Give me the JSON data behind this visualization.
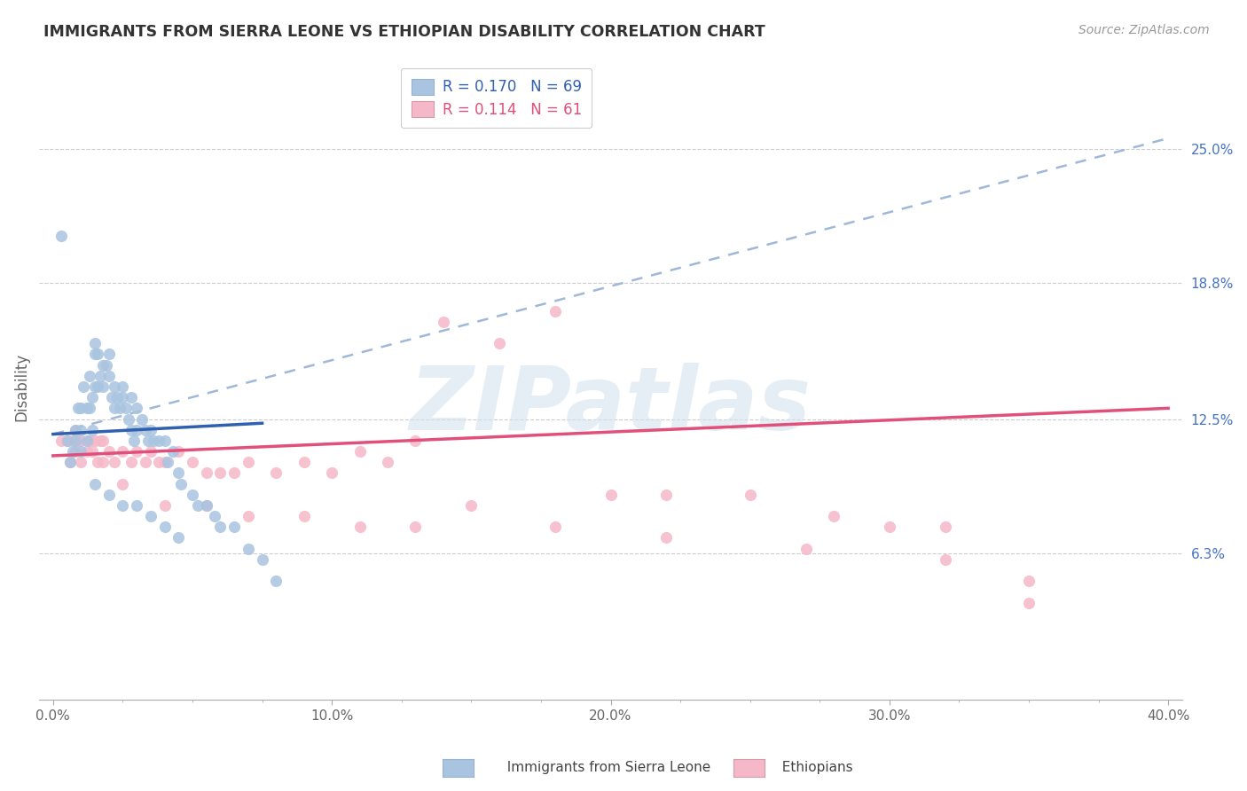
{
  "title": "IMMIGRANTS FROM SIERRA LEONE VS ETHIOPIAN DISABILITY CORRELATION CHART",
  "source": "Source: ZipAtlas.com",
  "ylabel": "Disability",
  "xlabel": "",
  "xlim": [
    -0.005,
    0.405
  ],
  "ylim": [
    -0.005,
    0.285
  ],
  "yticks": [
    0.063,
    0.125,
    0.188,
    0.25
  ],
  "ytick_labels": [
    "6.3%",
    "12.5%",
    "18.8%",
    "25.0%"
  ],
  "xticks": [
    0.0,
    0.1,
    0.2,
    0.3,
    0.4
  ],
  "xtick_labels": [
    "0.0%",
    "10.0%",
    "20.0%",
    "30.0%",
    "40.0%"
  ],
  "r_blue": 0.17,
  "n_blue": 69,
  "r_pink": 0.114,
  "n_pink": 61,
  "blue_color": "#a8c4e0",
  "pink_color": "#f5b8c8",
  "blue_line_color": "#3060b0",
  "pink_line_color": "#e0507a",
  "dashed_line_color": "#a0b8d8",
  "watermark_color": "#d5e3ef",
  "watermark": "ZIPatlas",
  "sierra_leone_x": [
    0.003,
    0.005,
    0.006,
    0.007,
    0.008,
    0.008,
    0.009,
    0.01,
    0.01,
    0.01,
    0.011,
    0.012,
    0.012,
    0.013,
    0.013,
    0.014,
    0.014,
    0.015,
    0.015,
    0.015,
    0.016,
    0.016,
    0.017,
    0.018,
    0.018,
    0.019,
    0.02,
    0.02,
    0.021,
    0.022,
    0.022,
    0.023,
    0.024,
    0.025,
    0.025,
    0.026,
    0.027,
    0.028,
    0.028,
    0.029,
    0.03,
    0.03,
    0.032,
    0.033,
    0.034,
    0.035,
    0.036,
    0.038,
    0.04,
    0.041,
    0.043,
    0.045,
    0.046,
    0.05,
    0.052,
    0.055,
    0.058,
    0.06,
    0.065,
    0.07,
    0.075,
    0.08,
    0.015,
    0.02,
    0.025,
    0.03,
    0.035,
    0.04,
    0.045
  ],
  "sierra_leone_y": [
    0.21,
    0.115,
    0.105,
    0.11,
    0.12,
    0.115,
    0.13,
    0.13,
    0.12,
    0.11,
    0.14,
    0.13,
    0.115,
    0.145,
    0.13,
    0.135,
    0.12,
    0.16,
    0.155,
    0.14,
    0.155,
    0.14,
    0.145,
    0.15,
    0.14,
    0.15,
    0.155,
    0.145,
    0.135,
    0.14,
    0.13,
    0.135,
    0.13,
    0.14,
    0.135,
    0.13,
    0.125,
    0.135,
    0.12,
    0.115,
    0.13,
    0.12,
    0.125,
    0.12,
    0.115,
    0.12,
    0.115,
    0.115,
    0.115,
    0.105,
    0.11,
    0.1,
    0.095,
    0.09,
    0.085,
    0.085,
    0.08,
    0.075,
    0.075,
    0.065,
    0.06,
    0.05,
    0.095,
    0.09,
    0.085,
    0.085,
    0.08,
    0.075,
    0.07
  ],
  "ethiopian_x": [
    0.003,
    0.005,
    0.006,
    0.007,
    0.008,
    0.008,
    0.009,
    0.01,
    0.01,
    0.012,
    0.013,
    0.014,
    0.015,
    0.016,
    0.017,
    0.018,
    0.018,
    0.02,
    0.022,
    0.025,
    0.028,
    0.03,
    0.033,
    0.035,
    0.038,
    0.04,
    0.045,
    0.05,
    0.055,
    0.06,
    0.065,
    0.07,
    0.08,
    0.09,
    0.1,
    0.11,
    0.12,
    0.13,
    0.14,
    0.16,
    0.18,
    0.2,
    0.22,
    0.25,
    0.28,
    0.3,
    0.32,
    0.35,
    0.025,
    0.04,
    0.055,
    0.07,
    0.09,
    0.11,
    0.13,
    0.15,
    0.18,
    0.22,
    0.27,
    0.32,
    0.35
  ],
  "ethiopian_y": [
    0.115,
    0.115,
    0.105,
    0.115,
    0.12,
    0.11,
    0.115,
    0.115,
    0.105,
    0.11,
    0.115,
    0.11,
    0.115,
    0.105,
    0.115,
    0.115,
    0.105,
    0.11,
    0.105,
    0.11,
    0.105,
    0.11,
    0.105,
    0.11,
    0.105,
    0.105,
    0.11,
    0.105,
    0.1,
    0.1,
    0.1,
    0.105,
    0.1,
    0.105,
    0.1,
    0.11,
    0.105,
    0.115,
    0.17,
    0.16,
    0.175,
    0.09,
    0.09,
    0.09,
    0.08,
    0.075,
    0.075,
    0.04,
    0.095,
    0.085,
    0.085,
    0.08,
    0.08,
    0.075,
    0.075,
    0.085,
    0.075,
    0.07,
    0.065,
    0.06,
    0.05
  ],
  "blue_line_solid_end": 0.075,
  "blue_line_start_y": 0.118,
  "blue_line_end_y_solid": 0.145,
  "blue_line_end_y_dashed": 0.255,
  "pink_line_start_y": 0.108,
  "pink_line_end_y": 0.13
}
